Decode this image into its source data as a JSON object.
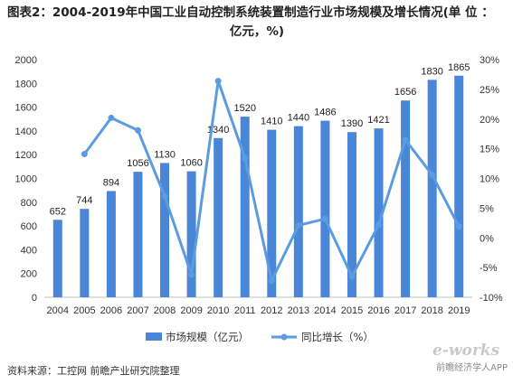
{
  "title": {
    "line1": "图表2：2004-2019年中国工业自动控制系统装置制造行业市场规模及增长情况(单 位 ：",
    "line2": "亿元，%)"
  },
  "source": "资料来源：工控网 前瞻产业研究院整理",
  "watermark": {
    "logo": "e-works",
    "text": "前瞻经济学人APP"
  },
  "chart_data": {
    "type": "bar",
    "categories": [
      "2004",
      "2005",
      "2006",
      "2007",
      "2008",
      "2009",
      "2010",
      "2011",
      "2012",
      "2013",
      "2014",
      "2015",
      "2016",
      "2017",
      "2018",
      "2019"
    ],
    "series": [
      {
        "name": "市场规模（亿元）",
        "type": "bar",
        "axis": "left",
        "color": "#4a86d8",
        "values": [
          652,
          744,
          894,
          1056,
          1130,
          1060,
          1340,
          1520,
          1410,
          1440,
          1486,
          1390,
          1421,
          1656,
          1830,
          1865
        ]
      },
      {
        "name": "同比增长（%）",
        "type": "line",
        "axis": "right",
        "color": "#5b9be0",
        "values": [
          null,
          14.1,
          20.2,
          18.1,
          7.0,
          -6.2,
          26.4,
          13.4,
          -7.2,
          2.1,
          3.2,
          -6.5,
          2.2,
          16.5,
          10.6,
          1.9
        ]
      }
    ],
    "ylim_left": [
      0,
      2000
    ],
    "yticks_left": [
      0,
      200,
      400,
      600,
      800,
      1000,
      1200,
      1400,
      1600,
      1800,
      2000
    ],
    "ylim_right": [
      -10,
      30
    ],
    "yticks_right": [
      "-10%",
      "-5%",
      "0%",
      "5%",
      "10%",
      "15%",
      "20%",
      "25%",
      "30%"
    ],
    "grid": false,
    "legend_position": "bottom"
  }
}
